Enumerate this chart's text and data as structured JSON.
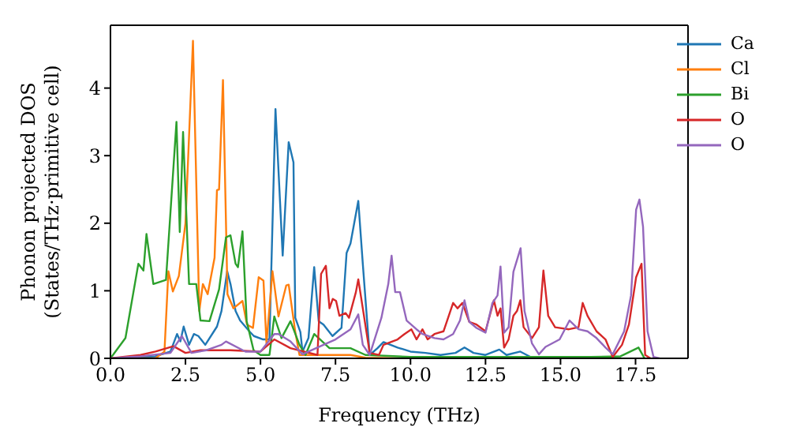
{
  "chart_data": {
    "type": "line",
    "xlabel": "Frequency (THz)",
    "ylabel": "Phonon projected DOS\n(States/THz·primitive cell)",
    "xlim": [
      0,
      19.25
    ],
    "xticks": [
      {
        "value": 0,
        "label": "0.0"
      },
      {
        "value": 2.5,
        "label": "2.5"
      },
      {
        "value": 5,
        "label": "5.0"
      },
      {
        "value": 7.5,
        "label": "7.5"
      },
      {
        "value": 10,
        "label": "10.0"
      },
      {
        "value": 12.5,
        "label": "12.5"
      },
      {
        "value": 15,
        "label": "15.0"
      },
      {
        "value": 17.5,
        "label": "17.5"
      }
    ],
    "ylim": [
      0,
      4.93
    ],
    "yticks": [
      0,
      1,
      2,
      3,
      4
    ],
    "grid": false,
    "legend": "top right",
    "marker": "none",
    "line_style": "solid",
    "series": [
      {
        "name": "Ca",
        "color": "#1f77b4",
        "x": [
          0,
          1.0,
          1.5,
          2.0,
          2.22,
          2.33,
          2.44,
          2.62,
          2.78,
          2.93,
          3.16,
          3.55,
          3.7,
          3.89,
          4.0,
          4.17,
          4.32,
          4.63,
          4.78,
          5.09,
          5.3,
          5.5,
          5.74,
          5.94,
          6.1,
          6.16,
          6.33,
          6.4,
          6.6,
          6.79,
          6.94,
          7.1,
          7.4,
          7.7,
          7.87,
          8.0,
          8.26,
          8.41,
          8.64,
          8.9,
          9.1,
          9.57,
          10.0,
          10.5,
          11.0,
          11.5,
          11.8,
          12.1,
          12.5,
          12.96,
          13.2,
          13.66,
          14.0
        ],
        "values": [
          0,
          0.02,
          0.03,
          0.1,
          0.36,
          0.25,
          0.47,
          0.2,
          0.36,
          0.33,
          0.2,
          0.47,
          0.7,
          1.29,
          1.1,
          0.7,
          0.56,
          0.4,
          0.33,
          0.28,
          0.28,
          3.69,
          1.52,
          3.2,
          2.9,
          0.6,
          0.39,
          0.1,
          0.3,
          1.35,
          0.55,
          0.5,
          0.33,
          0.45,
          1.56,
          1.7,
          2.33,
          1.4,
          0.05,
          0.15,
          0.24,
          0.16,
          0.1,
          0.08,
          0.05,
          0.08,
          0.16,
          0.08,
          0.05,
          0.13,
          0.05,
          0.1,
          0.02
        ]
      },
      {
        "name": "Cl",
        "color": "#ff7f0e",
        "x": [
          0,
          1.5,
          1.8,
          1.93,
          2.08,
          2.28,
          2.5,
          2.75,
          2.96,
          3.08,
          3.24,
          3.47,
          3.55,
          3.62,
          3.75,
          3.9,
          4.1,
          4.4,
          4.55,
          4.75,
          4.94,
          5.1,
          5.2,
          5.4,
          5.6,
          5.86,
          5.94,
          6.16,
          6.3,
          7.0,
          8.0,
          8.5,
          10.0
        ],
        "values": [
          0,
          0,
          0.1,
          1.29,
          0.99,
          1.22,
          2.0,
          4.7,
          0.7,
          1.1,
          0.95,
          1.49,
          2.49,
          2.5,
          4.12,
          0.95,
          0.74,
          0.85,
          0.5,
          0.45,
          1.2,
          1.15,
          0.22,
          1.29,
          0.62,
          1.08,
          1.09,
          0.39,
          0.05,
          0.05,
          0.05,
          0.01,
          0
        ]
      },
      {
        "name": "Bi",
        "color": "#2ca02c",
        "x": [
          0,
          0.5,
          0.93,
          1.1,
          1.2,
          1.43,
          1.85,
          2.2,
          2.31,
          2.42,
          2.62,
          2.86,
          3.0,
          3.3,
          3.62,
          3.85,
          4.0,
          4.17,
          4.25,
          4.4,
          4.54,
          4.77,
          5.0,
          5.3,
          5.46,
          5.7,
          6.0,
          6.3,
          6.5,
          6.79,
          7.3,
          8.0,
          8.5,
          10.0,
          12.0,
          14.0,
          16.0,
          17.0,
          17.6,
          17.8
        ],
        "values": [
          0,
          0.3,
          1.4,
          1.3,
          1.84,
          1.1,
          1.16,
          3.5,
          1.87,
          3.35,
          1.1,
          1.1,
          0.56,
          0.55,
          1.02,
          1.79,
          1.82,
          1.4,
          1.35,
          1.88,
          0.55,
          0.12,
          0.05,
          0.05,
          0.62,
          0.3,
          0.55,
          0.2,
          0.05,
          0.36,
          0.15,
          0.15,
          0.05,
          0.02,
          0.02,
          0.02,
          0.02,
          0.03,
          0.16,
          0
        ]
      },
      {
        "name": "O",
        "color": "#d62728",
        "x": [
          0,
          1.0,
          1.5,
          2.1,
          2.5,
          3.0,
          4.0,
          5.0,
          5.46,
          6.0,
          6.9,
          7.02,
          7.18,
          7.3,
          7.41,
          7.52,
          7.63,
          7.84,
          7.95,
          8.18,
          8.26,
          8.41,
          8.64,
          8.95,
          9.1,
          9.57,
          9.8,
          10.03,
          10.2,
          10.4,
          10.57,
          10.8,
          11.1,
          11.42,
          11.57,
          11.73,
          11.96,
          12.2,
          12.5,
          12.78,
          12.9,
          13.0,
          13.12,
          13.27,
          13.43,
          13.55,
          13.66,
          13.77,
          14.05,
          14.28,
          14.43,
          14.59,
          14.82,
          15.28,
          15.6,
          15.74,
          15.9,
          16.2,
          16.5,
          16.74,
          17.05,
          17.28,
          17.52,
          17.7,
          17.82,
          18.0
        ],
        "values": [
          0,
          0.05,
          0.1,
          0.18,
          0.08,
          0.12,
          0.12,
          0.1,
          0.28,
          0.15,
          0.05,
          1.25,
          1.37,
          0.74,
          0.88,
          0.85,
          0.63,
          0.67,
          0.6,
          0.98,
          1.17,
          0.74,
          0.08,
          0.05,
          0.2,
          0.28,
          0.36,
          0.43,
          0.28,
          0.43,
          0.28,
          0.36,
          0.4,
          0.82,
          0.74,
          0.82,
          0.54,
          0.5,
          0.4,
          0.86,
          0.63,
          0.74,
          0.16,
          0.28,
          0.63,
          0.7,
          0.86,
          0.46,
          0.3,
          0.46,
          1.3,
          0.63,
          0.46,
          0.43,
          0.46,
          0.82,
          0.63,
          0.4,
          0.28,
          0.02,
          0.2,
          0.5,
          1.2,
          1.4,
          0.05,
          0
        ]
      },
      {
        "name": "O",
        "color": "#9467bd",
        "x": [
          0,
          1.0,
          2.0,
          2.38,
          2.7,
          3.2,
          3.7,
          3.85,
          4.5,
          5.0,
          5.46,
          5.6,
          6.0,
          6.4,
          7.1,
          7.5,
          8.0,
          8.26,
          8.41,
          8.64,
          9.03,
          9.26,
          9.37,
          9.49,
          9.65,
          9.87,
          10.2,
          10.4,
          10.8,
          11.1,
          11.42,
          11.65,
          11.8,
          11.96,
          12.2,
          12.5,
          12.73,
          12.9,
          13.0,
          13.12,
          13.27,
          13.43,
          13.58,
          13.67,
          13.8,
          14.05,
          14.28,
          14.5,
          14.97,
          15.3,
          15.6,
          15.9,
          16.2,
          16.5,
          16.74,
          17.12,
          17.35,
          17.52,
          17.63,
          17.75,
          17.9,
          18.1,
          18.3
        ],
        "values": [
          0,
          0.03,
          0.08,
          0.33,
          0.08,
          0.12,
          0.2,
          0.25,
          0.1,
          0.1,
          0.36,
          0.36,
          0.25,
          0.06,
          0.2,
          0.28,
          0.43,
          0.65,
          0.2,
          0.05,
          0.6,
          1.1,
          1.52,
          0.98,
          0.98,
          0.56,
          0.43,
          0.36,
          0.3,
          0.28,
          0.36,
          0.56,
          0.86,
          0.54,
          0.45,
          0.38,
          0.82,
          0.93,
          1.36,
          0.38,
          0.46,
          1.28,
          1.5,
          1.63,
          0.7,
          0.22,
          0.06,
          0.17,
          0.28,
          0.56,
          0.43,
          0.4,
          0.3,
          0.16,
          0.06,
          0.4,
          0.93,
          2.2,
          2.35,
          1.95,
          0.4,
          0.02,
          0
        ]
      }
    ]
  }
}
